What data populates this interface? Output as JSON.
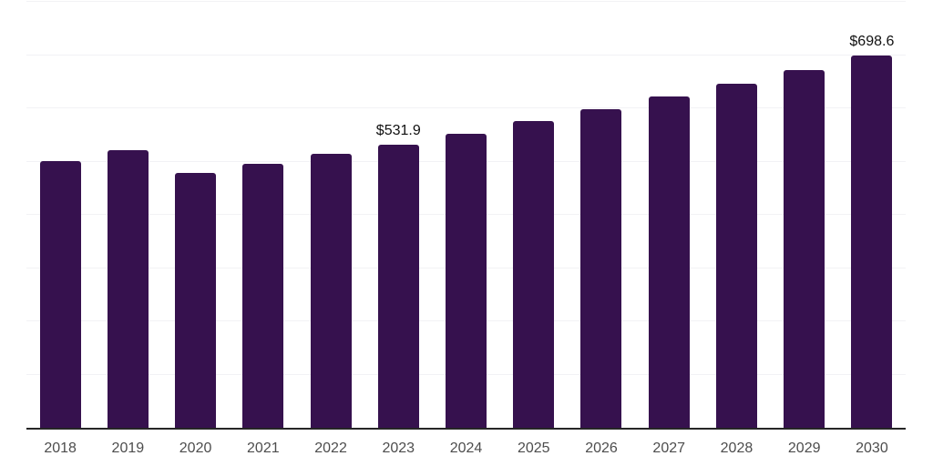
{
  "chart_data": {
    "type": "bar",
    "categories": [
      "2018",
      "2019",
      "2020",
      "2021",
      "2022",
      "2023",
      "2024",
      "2025",
      "2026",
      "2027",
      "2028",
      "2029",
      "2030"
    ],
    "values": [
      501,
      522,
      478,
      495,
      514,
      531.9,
      553,
      576,
      598,
      623,
      646,
      672,
      698.6
    ],
    "data_labels": {
      "2023": "$531.9",
      "2030": "$698.6"
    },
    "xlabel": "",
    "ylabel": "",
    "ylim": [
      0,
      800
    ],
    "gridline_step": 100,
    "grid": true,
    "legend": "none",
    "colors": {
      "bar": "#36114E",
      "gridline": "#f2f2f5",
      "axis": "#262626",
      "tick_label": "#4d4d4d",
      "data_label": "#111111",
      "background": "#ffffff"
    }
  }
}
